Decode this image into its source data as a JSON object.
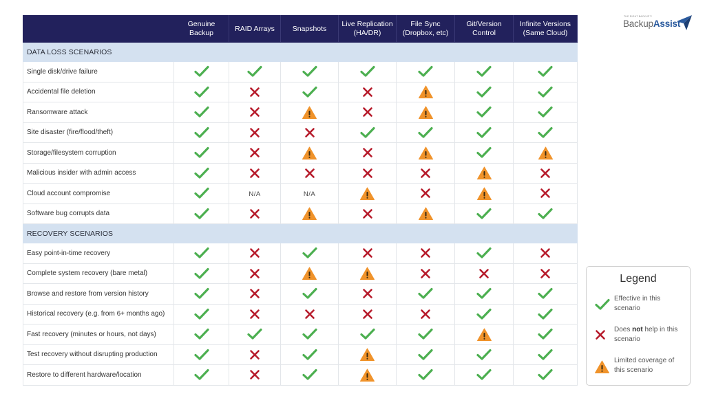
{
  "colors": {
    "header_bg": "#22215c",
    "section_bg": "#d4e1f0",
    "check": "#4caf50",
    "cross": "#b71c2c",
    "warning": "#f0932b"
  },
  "logo": {
    "tagline": "THE RIGHT BACKUP™",
    "word_regular": "Backup",
    "word_bold": "Assist",
    "mark_icon": "paper-plane-icon"
  },
  "table": {
    "columns": [
      "Genuine Backup",
      "RAID Arrays",
      "Snapshots",
      "Live Replication (HA/DR)",
      "File Sync (Dropbox, etc)",
      "Git/Version Control",
      "Infinite Versions (Same Cloud)"
    ],
    "column_lines": [
      [
        "Genuine",
        "Backup"
      ],
      [
        "RAID Arrays"
      ],
      [
        "Snapshots"
      ],
      [
        "Live Replication",
        "(HA/DR)"
      ],
      [
        "File Sync",
        "(Dropbox, etc)"
      ],
      [
        "Git/Version",
        "Control"
      ],
      [
        "Infinite Versions",
        "(Same Cloud)"
      ]
    ],
    "sections": [
      {
        "title": "DATA LOSS SCENARIOS",
        "rows": [
          {
            "label": "Single disk/drive failure",
            "values": [
              "check",
              "check",
              "check",
              "check",
              "check",
              "check",
              "check"
            ]
          },
          {
            "label": "Accidental file deletion",
            "values": [
              "check",
              "cross",
              "check",
              "cross",
              "warning",
              "check",
              "check"
            ]
          },
          {
            "label": "Ransomware attack",
            "values": [
              "check",
              "cross",
              "warning",
              "cross",
              "warning",
              "check",
              "check"
            ]
          },
          {
            "label": "Site disaster (fire/flood/theft)",
            "values": [
              "check",
              "cross",
              "cross",
              "check",
              "check",
              "check",
              "check"
            ]
          },
          {
            "label": "Storage/filesystem corruption",
            "values": [
              "check",
              "cross",
              "warning",
              "cross",
              "warning",
              "check",
              "warning"
            ]
          },
          {
            "label": "Malicious insider with admin access",
            "values": [
              "check",
              "cross",
              "cross",
              "cross",
              "cross",
              "warning",
              "cross"
            ]
          },
          {
            "label": "Cloud account compromise",
            "values": [
              "check",
              "N/A",
              "N/A",
              "warning",
              "cross",
              "warning",
              "cross"
            ]
          },
          {
            "label": "Software bug corrupts data",
            "values": [
              "check",
              "cross",
              "warning",
              "cross",
              "warning",
              "check",
              "check"
            ]
          }
        ]
      },
      {
        "title": "RECOVERY SCENARIOS",
        "rows": [
          {
            "label": "Easy point-in-time recovery",
            "values": [
              "check",
              "cross",
              "check",
              "cross",
              "cross",
              "check",
              "cross"
            ]
          },
          {
            "label": "Complete system recovery (bare metal)",
            "values": [
              "check",
              "cross",
              "warning",
              "warning",
              "cross",
              "cross",
              "cross"
            ]
          },
          {
            "label": "Browse and restore from version history",
            "values": [
              "check",
              "cross",
              "check",
              "cross",
              "check",
              "check",
              "check"
            ]
          },
          {
            "label": "Historical recovery (e.g. from 6+ months ago)",
            "values": [
              "check",
              "cross",
              "cross",
              "cross",
              "cross",
              "check",
              "check"
            ]
          },
          {
            "label": "Fast recovery (minutes or hours, not days)",
            "values": [
              "check",
              "check",
              "check",
              "check",
              "check",
              "warning",
              "check"
            ]
          },
          {
            "label": "Test recovery without disrupting production",
            "values": [
              "check",
              "cross",
              "check",
              "warning",
              "check",
              "check",
              "check"
            ]
          },
          {
            "label": "Restore to different hardware/location",
            "values": [
              "check",
              "cross",
              "check",
              "warning",
              "check",
              "check",
              "check"
            ]
          }
        ]
      }
    ]
  },
  "legend": {
    "title": "Legend",
    "items": [
      {
        "icon": "check",
        "line1": "Effective in this",
        "line2": "scenario"
      },
      {
        "icon": "cross",
        "pre": "Does ",
        "bold": "not",
        "post": " help in this",
        "line2": "scenario"
      },
      {
        "icon": "warning",
        "line1": "Limited coverage of",
        "line2": "this scenario"
      }
    ]
  }
}
